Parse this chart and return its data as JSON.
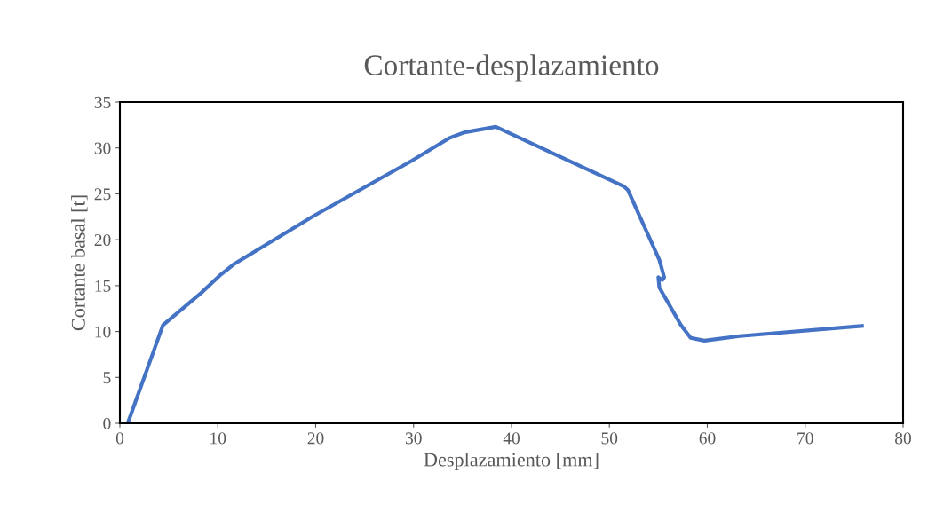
{
  "chart_data": {
    "type": "line",
    "title": "Cortante-desplazamiento",
    "xlabel": "Desplazamiento [mm]",
    "ylabel": "Cortante basal [t]",
    "series": [
      {
        "color": "#4472c4",
        "x": [
          0.8,
          4.4,
          8.3,
          10.2,
          11.6,
          19.8,
          29.8,
          33.7,
          35.2,
          38.4,
          51.5,
          51.9,
          55.1,
          55.6,
          55.4,
          55.0,
          55.1,
          57.3,
          58.3,
          59.7,
          63.3,
          75.8
        ],
        "values": [
          0,
          10.7,
          14.2,
          16.1,
          17.3,
          22.6,
          28.6,
          31.1,
          31.7,
          32.3,
          25.8,
          25.4,
          17.8,
          15.9,
          15.6,
          15.9,
          14.8,
          10.7,
          9.3,
          9.0,
          9.5,
          10.6
        ]
      }
    ],
    "xlim": [
      0,
      80
    ],
    "xticks": [
      0,
      10,
      20,
      30,
      40,
      50,
      60,
      70,
      80
    ],
    "ylim": [
      0,
      35
    ],
    "yticks": [
      0,
      5,
      10,
      15,
      20,
      25,
      30,
      35
    ],
    "grid": false,
    "legend": false,
    "marker": "none",
    "line_style": "solid"
  }
}
